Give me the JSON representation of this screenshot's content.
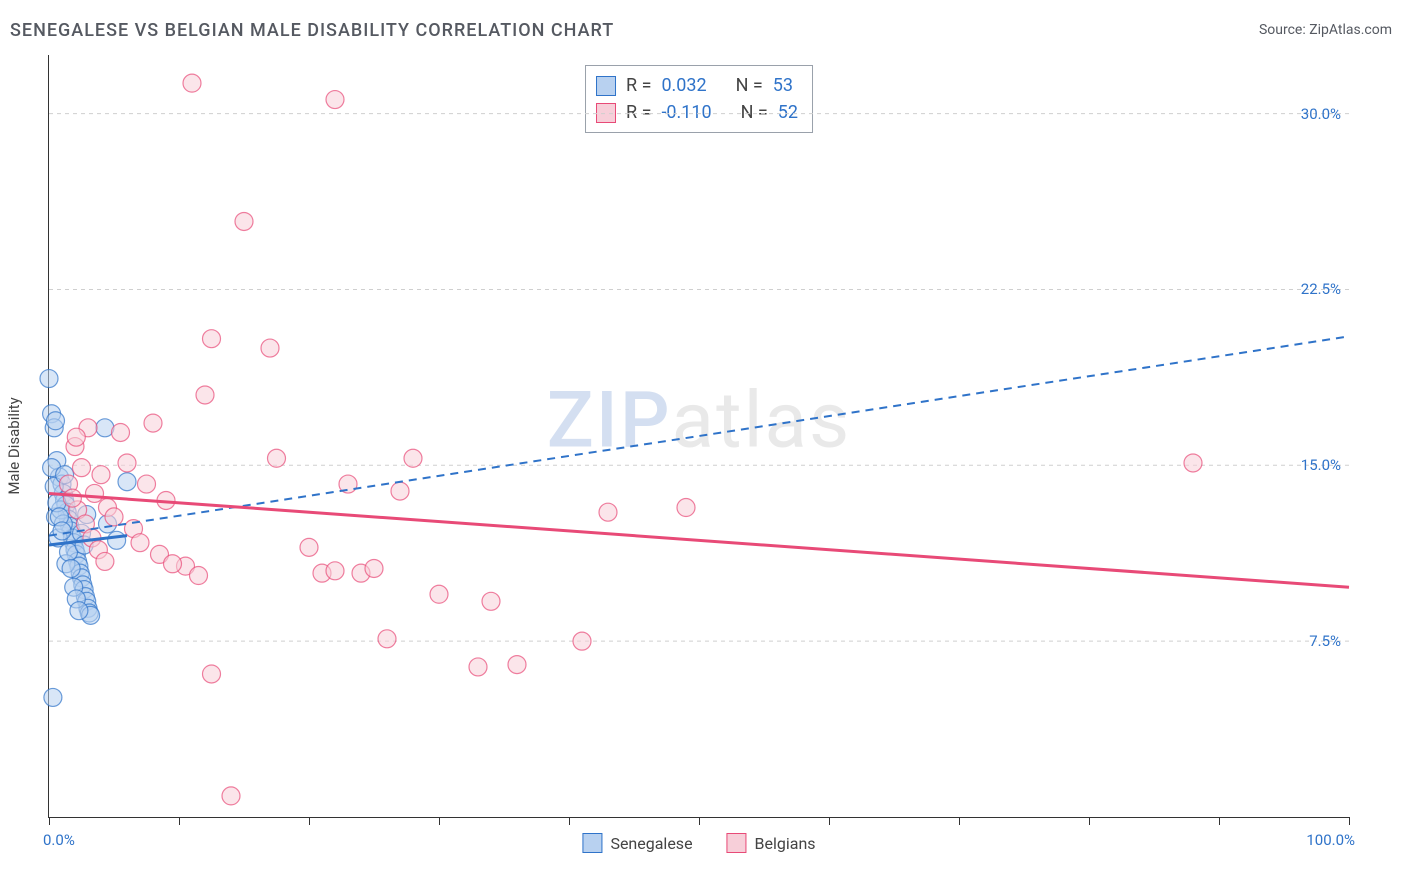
{
  "title": "SENEGALESE VS BELGIAN MALE DISABILITY CORRELATION CHART",
  "source_label": "Source: ZipAtlas.com",
  "ylabel": "Male Disability",
  "watermark_a": "ZIP",
  "watermark_b": "atlas",
  "chart": {
    "type": "scatter",
    "background_color": "#ffffff",
    "grid_color": "#cfcfcf",
    "axis_color": "#333333",
    "xlim": [
      0,
      100
    ],
    "ylim": [
      0,
      32.5
    ],
    "x_tick_step": 10,
    "x_start_label": "0.0%",
    "x_end_label": "100.0%",
    "y_ticks": [
      7.5,
      15.0,
      22.5,
      30.0
    ],
    "y_tick_labels": [
      "7.5%",
      "15.0%",
      "22.5%",
      "30.0%"
    ],
    "marker_radius": 9,
    "marker_opacity": 0.55,
    "series": {
      "senegalese": {
        "label": "Senegalese",
        "color_fill": "#b8d1f0",
        "color_stroke": "#2f73c9",
        "R": "0.032",
        "N": "53",
        "trend": {
          "style": "dashed",
          "width": 2,
          "color": "#2f73c9",
          "y_at_x0": 12.0,
          "y_at_x100": 20.5
        },
        "aux_trend": {
          "style": "solid",
          "width": 3,
          "color": "#2f73c9",
          "x0": 0,
          "y0": 11.6,
          "x1": 6,
          "y1": 12.0
        },
        "points": [
          [
            0.0,
            18.7
          ],
          [
            0.2,
            17.2
          ],
          [
            0.4,
            16.6
          ],
          [
            0.5,
            16.9
          ],
          [
            0.6,
            15.2
          ],
          [
            0.8,
            14.5
          ],
          [
            1.0,
            14.2
          ],
          [
            1.1,
            13.8
          ],
          [
            1.2,
            13.5
          ],
          [
            1.3,
            13.3
          ],
          [
            1.4,
            13.0
          ],
          [
            1.5,
            12.7
          ],
          [
            1.6,
            12.4
          ],
          [
            1.7,
            12.2
          ],
          [
            1.8,
            11.9
          ],
          [
            1.9,
            11.7
          ],
          [
            2.0,
            11.4
          ],
          [
            2.1,
            11.2
          ],
          [
            2.2,
            10.9
          ],
          [
            2.3,
            10.7
          ],
          [
            2.4,
            10.4
          ],
          [
            2.5,
            10.2
          ],
          [
            2.6,
            9.9
          ],
          [
            2.7,
            9.7
          ],
          [
            2.8,
            9.4
          ],
          [
            2.9,
            9.2
          ],
          [
            3.0,
            8.9
          ],
          [
            3.1,
            8.7
          ],
          [
            0.3,
            5.1
          ],
          [
            3.2,
            8.6
          ],
          [
            0.5,
            12.8
          ],
          [
            0.7,
            11.9
          ],
          [
            0.9,
            13.1
          ],
          [
            1.1,
            12.5
          ],
          [
            1.3,
            10.8
          ],
          [
            1.5,
            11.3
          ],
          [
            1.7,
            10.6
          ],
          [
            1.9,
            9.8
          ],
          [
            2.1,
            9.3
          ],
          [
            2.3,
            8.8
          ],
          [
            2.5,
            12.1
          ],
          [
            2.7,
            11.6
          ],
          [
            2.9,
            12.9
          ],
          [
            0.2,
            14.9
          ],
          [
            0.4,
            14.1
          ],
          [
            0.6,
            13.4
          ],
          [
            0.8,
            12.8
          ],
          [
            1.0,
            12.2
          ],
          [
            1.2,
            14.6
          ],
          [
            4.3,
            16.6
          ],
          [
            4.5,
            12.5
          ],
          [
            5.2,
            11.8
          ],
          [
            6.0,
            14.3
          ]
        ]
      },
      "belgians": {
        "label": "Belgians",
        "color_fill": "#f7cfd9",
        "color_stroke": "#e84a77",
        "R": "-0.110",
        "N": "52",
        "trend": {
          "style": "solid",
          "width": 3,
          "color": "#e84a77",
          "y_at_x0": 13.8,
          "y_at_x100": 9.8
        },
        "points": [
          [
            11.0,
            31.3
          ],
          [
            22.0,
            30.6
          ],
          [
            15.0,
            25.4
          ],
          [
            12.5,
            20.4
          ],
          [
            17.0,
            20.0
          ],
          [
            12.0,
            18.0
          ],
          [
            17.5,
            15.3
          ],
          [
            8.0,
            16.8
          ],
          [
            5.5,
            16.4
          ],
          [
            3.0,
            16.6
          ],
          [
            2.0,
            15.8
          ],
          [
            2.5,
            14.9
          ],
          [
            4.0,
            14.6
          ],
          [
            6.0,
            15.1
          ],
          [
            7.5,
            14.2
          ],
          [
            9.0,
            13.5
          ],
          [
            10.5,
            10.7
          ],
          [
            11.5,
            10.3
          ],
          [
            12.5,
            6.1
          ],
          [
            14.0,
            0.9
          ],
          [
            20.0,
            11.5
          ],
          [
            21.0,
            10.4
          ],
          [
            22.0,
            10.5
          ],
          [
            23.0,
            14.2
          ],
          [
            24.0,
            10.4
          ],
          [
            25.0,
            10.6
          ],
          [
            26.0,
            7.6
          ],
          [
            27.0,
            13.9
          ],
          [
            28.0,
            15.3
          ],
          [
            30.0,
            9.5
          ],
          [
            33.0,
            6.4
          ],
          [
            34.0,
            9.2
          ],
          [
            36.0,
            6.5
          ],
          [
            41.0,
            7.5
          ],
          [
            43.0,
            13.0
          ],
          [
            49.0,
            13.2
          ],
          [
            88.0,
            15.1
          ],
          [
            3.5,
            13.8
          ],
          [
            4.5,
            13.2
          ],
          [
            5.0,
            12.8
          ],
          [
            6.5,
            12.3
          ],
          [
            7.0,
            11.7
          ],
          [
            8.5,
            11.2
          ],
          [
            9.5,
            10.8
          ],
          [
            2.2,
            13.1
          ],
          [
            2.8,
            12.5
          ],
          [
            3.3,
            11.9
          ],
          [
            3.8,
            11.4
          ],
          [
            4.3,
            10.9
          ],
          [
            1.5,
            14.2
          ],
          [
            1.8,
            13.6
          ],
          [
            2.1,
            16.2
          ]
        ]
      }
    }
  },
  "stats_prefix_R": "R = ",
  "stats_prefix_N": "N = "
}
